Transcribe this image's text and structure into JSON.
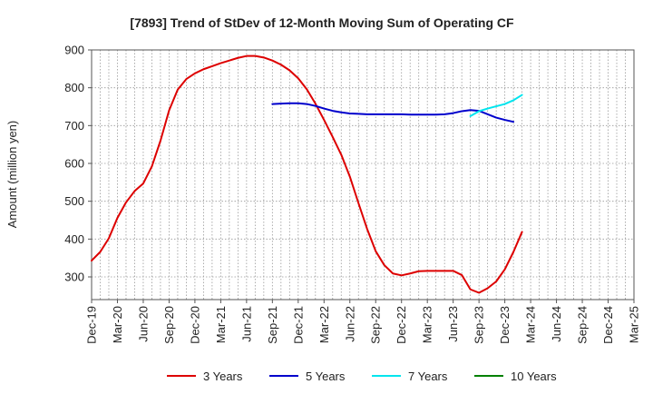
{
  "chart_data": {
    "type": "line",
    "title": "[7893]  Trend of StDev of 12-Month Moving Sum of Operating CF",
    "ylabel": "Amount (million yen)",
    "xlabel": "",
    "ylim": [
      240,
      900
    ],
    "y_ticks": [
      300,
      400,
      500,
      600,
      700,
      800,
      900
    ],
    "x_tick_labels": [
      "Dec-19",
      "Mar-20",
      "Jun-20",
      "Sep-20",
      "Dec-20",
      "Mar-21",
      "Jun-21",
      "Sep-21",
      "Dec-21",
      "Mar-22",
      "Jun-22",
      "Sep-22",
      "Dec-22",
      "Mar-23",
      "Jun-23",
      "Sep-23",
      "Dec-23",
      "Mar-24",
      "Jun-24",
      "Sep-24",
      "Dec-24",
      "Mar-25"
    ],
    "grid": true,
    "legend_position": "bottom",
    "x_months": [
      "Dec-19",
      "Jan-20",
      "Feb-20",
      "Mar-20",
      "Apr-20",
      "May-20",
      "Jun-20",
      "Jul-20",
      "Aug-20",
      "Sep-20",
      "Oct-20",
      "Nov-20",
      "Dec-20",
      "Jan-21",
      "Feb-21",
      "Mar-21",
      "Apr-21",
      "May-21",
      "Jun-21",
      "Jul-21",
      "Aug-21",
      "Sep-21",
      "Oct-21",
      "Nov-21",
      "Dec-21",
      "Jan-22",
      "Feb-22",
      "Mar-22",
      "Apr-22",
      "May-22",
      "Jun-22",
      "Jul-22",
      "Aug-22",
      "Sep-22",
      "Oct-22",
      "Nov-22",
      "Dec-22",
      "Jan-23",
      "Feb-23",
      "Mar-23",
      "Apr-23",
      "May-23",
      "Jun-23",
      "Jul-23",
      "Aug-23",
      "Sep-23",
      "Oct-23",
      "Nov-23",
      "Dec-23",
      "Jan-24",
      "Feb-24",
      "Mar-24",
      "Apr-24",
      "May-24",
      "Jun-24",
      "Jul-24",
      "Aug-24",
      "Sep-24",
      "Oct-24",
      "Nov-24",
      "Dec-24",
      "Jan-25",
      "Feb-25",
      "Mar-25"
    ],
    "series": [
      {
        "name": "3 Years",
        "color": "#dd0000",
        "values": [
          343,
          366,
          402,
          456,
          497,
          527,
          547,
          592,
          660,
          740,
          795,
          823,
          838,
          849,
          857,
          865,
          872,
          879,
          884,
          884,
          880,
          872,
          861,
          846,
          825,
          796,
          758,
          715,
          670,
          623,
          565,
          495,
          427,
          368,
          331,
          309,
          304,
          309,
          315,
          316,
          316,
          316,
          316,
          305,
          267,
          258,
          270,
          288,
          320,
          366,
          419,
          null,
          null,
          null,
          null,
          null,
          null,
          null,
          null,
          null,
          null,
          null,
          null,
          null
        ]
      },
      {
        "name": "5 Years",
        "color": "#0000cc",
        "values": [
          null,
          null,
          null,
          null,
          null,
          null,
          null,
          null,
          null,
          null,
          null,
          null,
          null,
          null,
          null,
          null,
          null,
          null,
          null,
          null,
          null,
          757,
          758,
          759,
          759,
          757,
          752,
          745,
          739,
          735,
          732,
          731,
          730,
          730,
          730,
          730,
          730,
          729,
          729,
          729,
          729,
          730,
          733,
          738,
          741,
          739,
          730,
          721,
          715,
          710,
          null,
          null,
          null,
          null,
          null,
          null,
          null,
          null,
          null,
          null,
          null,
          null,
          null,
          null
        ]
      },
      {
        "name": "7 Years",
        "color": "#00e5ee",
        "values": [
          null,
          null,
          null,
          null,
          null,
          null,
          null,
          null,
          null,
          null,
          null,
          null,
          null,
          null,
          null,
          null,
          null,
          null,
          null,
          null,
          null,
          null,
          null,
          null,
          null,
          null,
          null,
          null,
          null,
          null,
          null,
          null,
          null,
          null,
          null,
          null,
          null,
          null,
          null,
          null,
          null,
          null,
          null,
          null,
          725,
          738,
          745,
          751,
          757,
          767,
          781,
          null,
          null,
          null,
          null,
          null,
          null,
          null,
          null,
          null,
          null,
          null,
          null,
          null
        ]
      },
      {
        "name": "10 Years",
        "color": "#008000",
        "values": []
      }
    ]
  }
}
